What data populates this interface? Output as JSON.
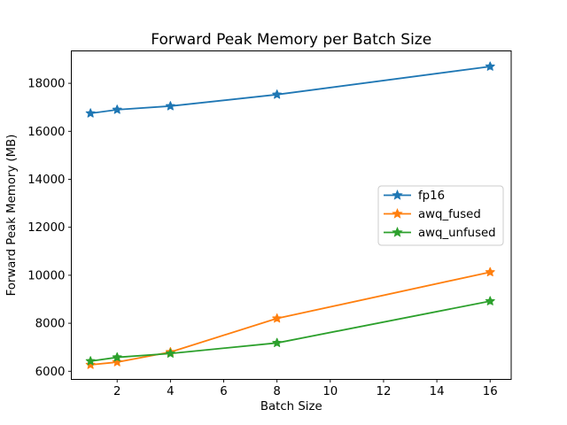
{
  "chart_data": {
    "type": "line",
    "title": "Forward Peak Memory per Batch Size",
    "xlabel": "Batch Size",
    "ylabel": "Forward Peak Memory (MB)",
    "x": [
      1,
      2,
      4,
      8,
      16
    ],
    "series": [
      {
        "name": "fp16",
        "color": "#1f77b4",
        "values": [
          16750,
          16900,
          17050,
          17530,
          18700
        ]
      },
      {
        "name": "awq_fused",
        "color": "#ff7f0e",
        "values": [
          6270,
          6380,
          6800,
          8200,
          10130
        ]
      },
      {
        "name": "awq_unfused",
        "color": "#2ca02c",
        "values": [
          6420,
          6580,
          6740,
          7180,
          8920
        ]
      }
    ],
    "xticks": [
      2,
      4,
      6,
      8,
      10,
      12,
      14,
      16
    ],
    "yticks": [
      6000,
      8000,
      10000,
      12000,
      14000,
      16000,
      18000
    ],
    "xlim": [
      0.28,
      16.79
    ],
    "ylim": [
      5660,
      19350
    ],
    "grid": false,
    "marker": "star",
    "legend_position": "center right",
    "colors": {
      "spine": "#000000",
      "background": "#ffffff",
      "legend_border": "#cccccc",
      "legend_fill": "rgba(255,255,255,0.8)"
    }
  }
}
